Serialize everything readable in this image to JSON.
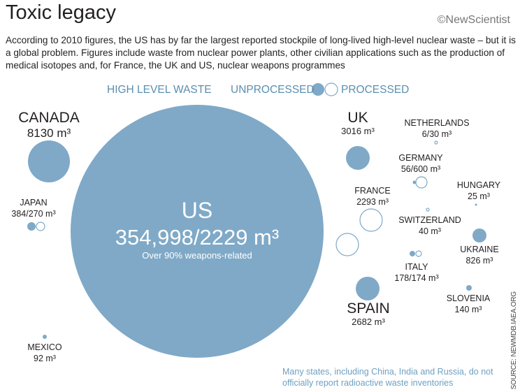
{
  "title": "Toxic legacy",
  "logo": "©NewScientist",
  "intro": "According to 2010 figures, the US has by far the largest reported stockpile of long-lived high-level nuclear waste – but it is a global problem. Figures include waste from nuclear power plants, other civilian applications such as the production of medical isotopes and, for France, the UK and US, nuclear weapons programmes",
  "legend": {
    "heading": "HIGH LEVEL WASTE",
    "unprocessed": "UNPROCESSED",
    "processed": "PROCESSED"
  },
  "colors": {
    "fill": "#7fa9c7",
    "outline": "#7fa9c7",
    "text": "#231f20",
    "note": "#6ea0c2"
  },
  "countries": {
    "us": {
      "name": "US",
      "value": "354,998/2229 m³",
      "note": "Over 90% weapons-related"
    },
    "canada": {
      "name": "CANADA",
      "value": "8130 m³"
    },
    "japan": {
      "name": "JAPAN",
      "value": "384/270 m³"
    },
    "mexico": {
      "name": "MEXICO",
      "value": "92 m³"
    },
    "uk": {
      "name": "UK",
      "value": "3016 m³"
    },
    "netherlands": {
      "name": "NETHERLANDS",
      "value": "6/30 m³"
    },
    "germany": {
      "name": "GERMANY",
      "value": "56/600 m³"
    },
    "hungary": {
      "name": "HUNGARY",
      "value": "25 m³"
    },
    "france": {
      "name": "FRANCE",
      "value": "2293 m³"
    },
    "switzerland": {
      "name": "SWITZERLAND",
      "value": "40 m³"
    },
    "ukraine": {
      "name": "UKRAINE",
      "value": "826 m³"
    },
    "italy": {
      "name": "ITALY",
      "value": "178/174 m³"
    },
    "spain": {
      "name": "SPAIN",
      "value": "2682 m³"
    },
    "slovenia": {
      "name": "SLOVENIA",
      "value": "140 m³"
    }
  },
  "footnote": "Many states, including China, India and Russia, do not officially report radioactive waste inventories",
  "source": "SOURCE: NEWMDB.IAEA.ORG"
}
